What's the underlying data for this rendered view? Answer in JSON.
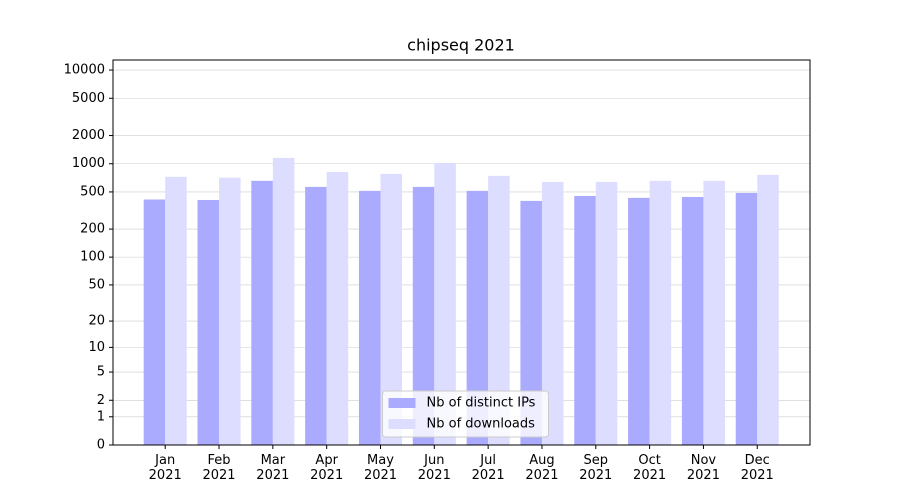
{
  "chart_data": {
    "type": "bar",
    "title": "chipseq 2021",
    "categories": [
      "Jan 2021",
      "Feb 2021",
      "Mar 2021",
      "Apr 2021",
      "May 2021",
      "Jun 2021",
      "Jul 2021",
      "Aug 2021",
      "Sep 2021",
      "Oct 2021",
      "Nov 2021",
      "Dec 2021"
    ],
    "series": [
      {
        "name": "Nb of distinct IPs",
        "color": "#aaaaff",
        "values": [
          415,
          410,
          657,
          566,
          513,
          566,
          513,
          401,
          453,
          432,
          442,
          488
        ]
      },
      {
        "name": "Nb of downloads",
        "color": "#ddddff",
        "values": [
          725,
          710,
          1155,
          818,
          780,
          1020,
          742,
          640,
          640,
          657,
          657,
          761
        ]
      }
    ],
    "yscale": "log1p",
    "ylim": [
      0,
      12800
    ],
    "yticks": [
      0,
      1,
      2,
      5,
      10,
      20,
      50,
      100,
      200,
      500,
      1000,
      2000,
      5000,
      10000
    ],
    "grid": true,
    "legend": "lower center"
  }
}
